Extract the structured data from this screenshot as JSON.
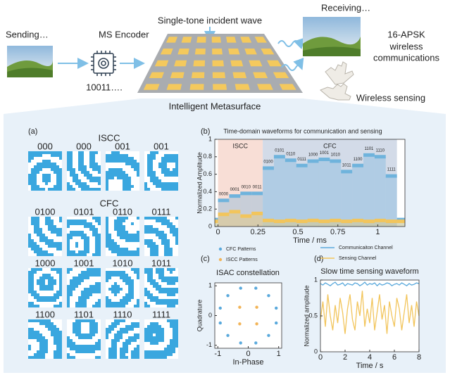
{
  "header": {
    "sending": "Sending…",
    "encoder": "MS Encoder",
    "bits": "10011….",
    "incident": "Single-tone incident wave",
    "receiving": "Receiving…",
    "apsk": [
      "16-APSK",
      "wireless",
      "communications"
    ],
    "sensing": "Wireless sensing",
    "metasurface": "Intelligent Metasurface"
  },
  "panel_a": {
    "panel": "(a)",
    "iscc_title": "ISCC",
    "iscc_labels": [
      "000",
      "000",
      "001",
      "001"
    ],
    "cfc_title": "CFC",
    "cfc_labels": [
      "0100",
      "0101",
      "0110",
      "0111",
      "1000",
      "1001",
      "1010",
      "1011",
      "1100",
      "1101",
      "1110",
      "1111"
    ]
  },
  "chart_data": [
    {
      "type": "step",
      "panel": "(b)",
      "title": "Time-domain waveforms for communication and sensing",
      "x_label": "Time / ms",
      "y_label": "Normalized Amplitude",
      "categories": [
        null,
        "0000",
        "0001",
        "0010",
        "0011",
        "0100",
        "0101",
        "0110",
        "0111",
        "1000",
        "1001",
        "1010",
        "1011",
        "1100",
        "1101",
        "1110",
        "1111",
        null
      ],
      "bins": [
        -0.02,
        0,
        0.07,
        0.14,
        0.21,
        0.28,
        0.35,
        0.42,
        0.49,
        0.56,
        0.63,
        0.7,
        0.77,
        0.84,
        0.91,
        0.98,
        1.05,
        1.12,
        1.17
      ],
      "series": [
        {
          "color": "#6fb3dc",
          "values": [
            0.08,
            0.3,
            0.35,
            0.38,
            0.38,
            0.67,
            0.8,
            0.76,
            0.7,
            0.75,
            0.77,
            0.75,
            0.63,
            0.7,
            0.82,
            0.8,
            0.58,
            0.08
          ]
        },
        {
          "color": "#f2c55c",
          "values": [
            0.06,
            0.14,
            0.17,
            0.12,
            0.15,
            0.07,
            0.06,
            0.07,
            0.06,
            0.07,
            0.06,
            0.07,
            0.06,
            0.07,
            0.06,
            0.07,
            0.06,
            0.06
          ]
        }
      ],
      "regions": [
        {
          "label": "ISCC",
          "from": 0,
          "to": 0.28,
          "color": "#f8ded6"
        },
        {
          "label": "CFC",
          "from": 0.28,
          "to": 1.12,
          "color": "#d3dbe8"
        }
      ],
      "xlim": [
        -0.02,
        1.17
      ],
      "xticks": [
        0,
        0.25,
        0.5,
        0.75,
        1
      ],
      "ylim": [
        0,
        1
      ],
      "yticks": [
        0,
        0.2,
        0.4,
        0.6,
        0.8,
        1
      ]
    },
    {
      "type": "scatter",
      "panel": "(c)",
      "title": "ISAC constellation",
      "x_label": "In-Phase",
      "y_label": "Quadrature",
      "series": [
        {
          "name": "CFC Patterns",
          "color": "#5aa9dc",
          "x": [
            0.92,
            0.67,
            0.25,
            -0.25,
            -0.67,
            -0.92,
            -0.92,
            -0.67,
            -0.25,
            0.25,
            0.67,
            0.92
          ],
          "values": [
            0.25,
            0.67,
            0.92,
            0.92,
            0.67,
            0.25,
            -0.25,
            -0.67,
            -0.92,
            -0.92,
            -0.67,
            -0.25
          ]
        },
        {
          "name": "ISCC Patterns",
          "color": "#f2b457",
          "x": [
            0.28,
            -0.28,
            -0.28,
            0.28
          ],
          "values": [
            0.28,
            0.28,
            -0.28,
            -0.28
          ]
        }
      ],
      "xlim": [
        -1.1,
        1.1
      ],
      "xticks": [
        -1,
        0,
        1
      ],
      "ylim": [
        -1.1,
        1.1
      ],
      "yticks": [
        -1,
        0,
        1
      ]
    },
    {
      "type": "line",
      "panel": "(d)",
      "title": "Slow time sensing waveform",
      "x_label": "Time / s",
      "y_label": "Normalized amplitude",
      "x": [
        0,
        0.2,
        0.4,
        0.6,
        0.8,
        1,
        1.2,
        1.4,
        1.6,
        1.8,
        2,
        2.2,
        2.4,
        2.6,
        2.8,
        3,
        3.2,
        3.4,
        3.6,
        3.8,
        4,
        4.2,
        4.4,
        4.6,
        4.8,
        5,
        5.2,
        5.4,
        5.6,
        5.8,
        6,
        6.2,
        6.4,
        6.6,
        6.8,
        7,
        7.2,
        7.4,
        7.6,
        7.8,
        8
      ],
      "series": [
        {
          "name": "Communicaiton Channel",
          "color": "#5aa9dc",
          "values": [
            0.95,
            0.93,
            0.96,
            0.94,
            0.92,
            0.95,
            0.97,
            0.93,
            0.94,
            0.96,
            0.92,
            0.95,
            0.94,
            0.93,
            0.96,
            0.95,
            0.92,
            0.94,
            0.97,
            0.93,
            0.95,
            0.94,
            0.96,
            0.92,
            0.95,
            0.93,
            0.94,
            0.96,
            0.95,
            0.92,
            0.94,
            0.95,
            0.93,
            0.96,
            0.94,
            0.92,
            0.95,
            0.93,
            0.94,
            0.96,
            0.95
          ]
        },
        {
          "name": "Sensing Channel",
          "color": "#f2c55c",
          "values": [
            0.45,
            0.7,
            0.35,
            0.8,
            0.5,
            0.3,
            0.65,
            0.4,
            0.75,
            0.55,
            0.25,
            0.6,
            0.8,
            0.45,
            0.3,
            0.7,
            0.5,
            0.85,
            0.35,
            0.6,
            0.4,
            0.75,
            0.3,
            0.55,
            0.8,
            0.45,
            0.65,
            0.25,
            0.7,
            0.5,
            0.35,
            0.75,
            0.6,
            0.3,
            0.55,
            0.8,
            0.4,
            0.65,
            0.35,
            0.7,
            0.5
          ]
        }
      ],
      "xlim": [
        0,
        8
      ],
      "xticks": [
        0,
        2,
        4,
        6,
        8
      ],
      "ylim": [
        0,
        1
      ],
      "yticks": [
        0,
        0.5,
        1
      ]
    }
  ]
}
